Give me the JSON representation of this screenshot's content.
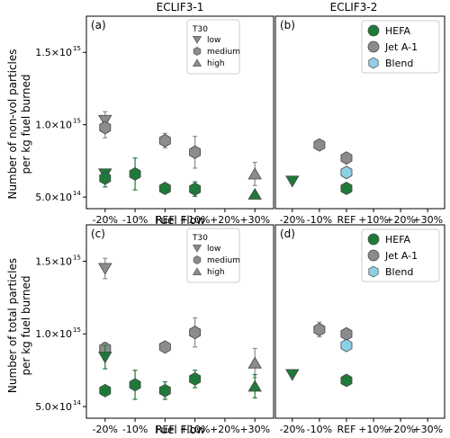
{
  "colors": {
    "hefa": "#1f7a3a",
    "jet_a1": "#8c8c8c",
    "blend": "#8ecfe8",
    "t30": "#8c8c8c"
  },
  "column_titles": [
    "ECLIF3-1",
    "ECLIF3-2"
  ],
  "row_ylabels": [
    [
      "Number of non-vol particles",
      "per kg fuel burned"
    ],
    [
      "Number of total particles",
      "per kg fuel burned"
    ]
  ],
  "xlabel": "Fuel Flow",
  "legends": {
    "t30": {
      "title": "T30",
      "entries": [
        "low",
        "medium",
        "high"
      ]
    },
    "fuels": {
      "entries": [
        "HEFA",
        "Jet A-1",
        "Blend"
      ]
    }
  },
  "chart_data": [
    {
      "panel": "(a)",
      "type": "scatter",
      "categories": [
        "-20%",
        "-10%",
        "REF",
        "+10%",
        "+20%",
        "+30%"
      ],
      "ylim": [
        420000000000000.0,
        1750000000000000.0
      ],
      "yticks": [
        500000000000000.0,
        1000000000000000.0,
        1500000000000000.0
      ],
      "ytick_labels": [
        "5.0×10",
        "1.0×10",
        "1.5×10"
      ],
      "ytick_exponents": [
        "14",
        "15",
        "15"
      ],
      "legend": "t30",
      "points": [
        {
          "x": "-20%",
          "y": 1030000000000000.0,
          "fuel": "jet_a1",
          "t30": "low",
          "err": 60000000000000.0
        },
        {
          "x": "-20%",
          "y": 980000000000000.0,
          "fuel": "jet_a1",
          "t30": "medium",
          "err": 70000000000000.0
        },
        {
          "x": "REF",
          "y": 890000000000000.0,
          "fuel": "jet_a1",
          "t30": "medium",
          "err": 50000000000000.0
        },
        {
          "x": "+10%",
          "y": 810000000000000.0,
          "fuel": "jet_a1",
          "t30": "medium",
          "err": 110000000000000.0
        },
        {
          "x": "+30%",
          "y": 660000000000000.0,
          "fuel": "jet_a1",
          "t30": "high",
          "err": 80000000000000.0
        },
        {
          "x": "-20%",
          "y": 660000000000000.0,
          "fuel": "hefa",
          "t30": "low",
          "err": 30000000000000.0
        },
        {
          "x": "-20%",
          "y": 630000000000000.0,
          "fuel": "hefa",
          "t30": "medium",
          "err": 60000000000000.0
        },
        {
          "x": "-10%",
          "y": 660000000000000.0,
          "fuel": "hefa",
          "t30": "medium",
          "err": 110000000000000.0
        },
        {
          "x": "REF",
          "y": 560000000000000.0,
          "fuel": "hefa",
          "t30": "medium",
          "err": 0.0
        },
        {
          "x": "+10%",
          "y": 555000000000000.0,
          "fuel": "hefa",
          "t30": "medium",
          "err": 50000000000000.0
        },
        {
          "x": "+30%",
          "y": 520000000000000.0,
          "fuel": "hefa",
          "t30": "high",
          "err": 0.0
        }
      ]
    },
    {
      "panel": "(b)",
      "type": "scatter",
      "categories": [
        "-20%",
        "-10%",
        "REF",
        "+10%",
        "+20%",
        "+30%"
      ],
      "ylim": [
        420000000000000.0,
        1750000000000000.0
      ],
      "legend": "fuels",
      "points": [
        {
          "x": "-10%",
          "y": 860000000000000.0,
          "fuel": "jet_a1",
          "t30": "medium",
          "err": 0.0
        },
        {
          "x": "REF",
          "y": 770000000000000.0,
          "fuel": "jet_a1",
          "t30": "medium",
          "err": 0.0
        },
        {
          "x": "REF",
          "y": 670000000000000.0,
          "fuel": "blend",
          "t30": "medium",
          "err": 0.0
        },
        {
          "x": "REF",
          "y": 560000000000000.0,
          "fuel": "hefa",
          "t30": "medium",
          "err": 0.0
        },
        {
          "x": "-20%",
          "y": 610000000000000.0,
          "fuel": "hefa",
          "t30": "low",
          "err": 0.0
        }
      ]
    },
    {
      "panel": "(c)",
      "type": "scatter",
      "categories": [
        "-20%",
        "-10%",
        "REF",
        "+10%",
        "+20%",
        "+30%"
      ],
      "ylim": [
        420000000000000.0,
        1750000000000000.0
      ],
      "yticks": [
        500000000000000.0,
        1000000000000000.0,
        1500000000000000.0
      ],
      "ytick_labels": [
        "5.0×10",
        "1.0×10",
        "1.5×10"
      ],
      "ytick_exponents": [
        "14",
        "15",
        "15"
      ],
      "legend": "t30",
      "points": [
        {
          "x": "-20%",
          "y": 1450000000000000.0,
          "fuel": "jet_a1",
          "t30": "low",
          "err": 70000000000000.0
        },
        {
          "x": "-20%",
          "y": 900000000000000.0,
          "fuel": "jet_a1",
          "t30": "medium",
          "err": 40000000000000.0
        },
        {
          "x": "REF",
          "y": 910000000000000.0,
          "fuel": "jet_a1",
          "t30": "medium",
          "err": 30000000000000.0
        },
        {
          "x": "+10%",
          "y": 1010000000000000.0,
          "fuel": "jet_a1",
          "t30": "medium",
          "err": 100000000000000.0
        },
        {
          "x": "+30%",
          "y": 800000000000000.0,
          "fuel": "jet_a1",
          "t30": "high",
          "err": 100000000000000.0
        },
        {
          "x": "-20%",
          "y": 840000000000000.0,
          "fuel": "hefa",
          "t30": "low",
          "err": 80000000000000.0
        },
        {
          "x": "-20%",
          "y": 610000000000000.0,
          "fuel": "hefa",
          "t30": "medium",
          "err": 0.0
        },
        {
          "x": "-10%",
          "y": 650000000000000.0,
          "fuel": "hefa",
          "t30": "medium",
          "err": 100000000000000.0
        },
        {
          "x": "REF",
          "y": 610000000000000.0,
          "fuel": "hefa",
          "t30": "medium",
          "err": 60000000000000.0
        },
        {
          "x": "+10%",
          "y": 690000000000000.0,
          "fuel": "hefa",
          "t30": "medium",
          "err": 60000000000000.0
        },
        {
          "x": "+30%",
          "y": 640000000000000.0,
          "fuel": "hefa",
          "t30": "high",
          "err": 80000000000000.0
        }
      ]
    },
    {
      "panel": "(d)",
      "type": "scatter",
      "categories": [
        "-20%",
        "-10%",
        "REF",
        "+10%",
        "+20%",
        "+30%"
      ],
      "ylim": [
        420000000000000.0,
        1750000000000000.0
      ],
      "legend": "fuels",
      "points": [
        {
          "x": "-10%",
          "y": 1030000000000000.0,
          "fuel": "jet_a1",
          "t30": "medium",
          "err": 50000000000000.0
        },
        {
          "x": "REF",
          "y": 1000000000000000.0,
          "fuel": "jet_a1",
          "t30": "medium",
          "err": 0.0
        },
        {
          "x": "REF",
          "y": 920000000000000.0,
          "fuel": "blend",
          "t30": "medium",
          "err": 0.0
        },
        {
          "x": "REF",
          "y": 680000000000000.0,
          "fuel": "hefa",
          "t30": "medium",
          "err": 0.0
        },
        {
          "x": "-20%",
          "y": 720000000000000.0,
          "fuel": "hefa",
          "t30": "low",
          "err": 0.0
        }
      ]
    }
  ]
}
